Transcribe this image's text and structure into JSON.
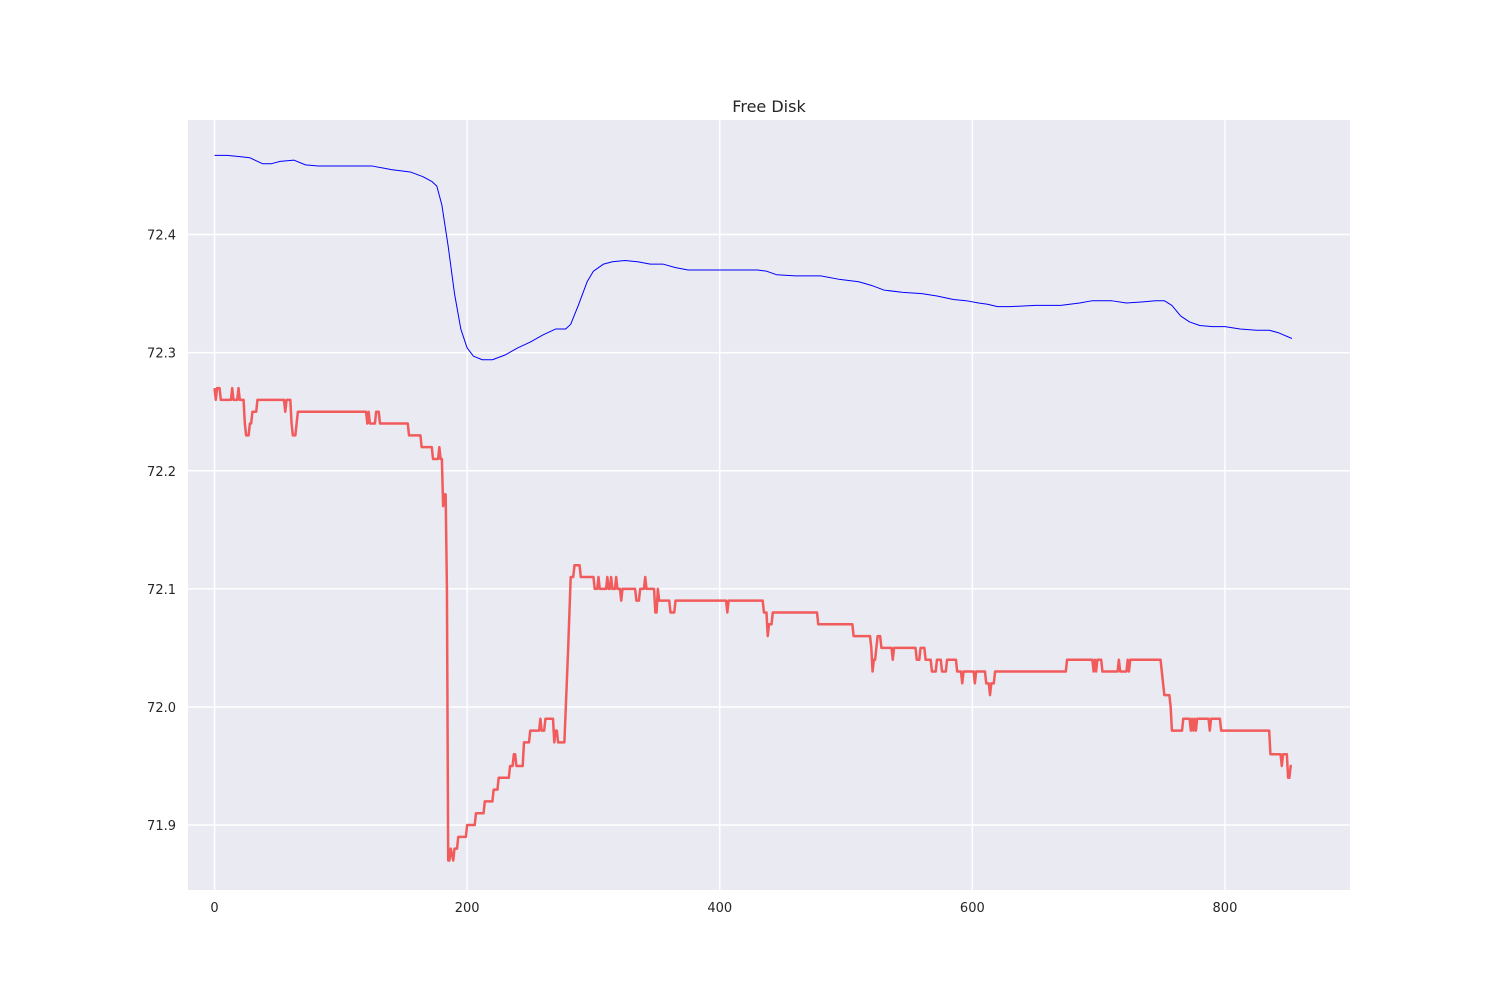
{
  "chart_data": {
    "type": "line",
    "title": "Free Disk",
    "xlabel": "",
    "ylabel": "",
    "xlim": [
      -21,
      899
    ],
    "ylim": [
      71.845,
      72.497
    ],
    "xticks": [
      0,
      200,
      400,
      600,
      800
    ],
    "xtick_labels": [
      "0",
      "200",
      "400",
      "600",
      "800"
    ],
    "yticks": [
      71.9,
      72.0,
      72.1,
      72.2,
      72.3,
      72.4
    ],
    "ytick_labels": [
      "71.9",
      "72.0",
      "72.1",
      "72.2",
      "72.3",
      "72.4"
    ],
    "grid": true,
    "background": "#eaeaf2",
    "grid_color": "#ffffff",
    "series": [
      {
        "color": "#0000ff",
        "line_width": 1,
        "points": [
          [
            0,
            72.467
          ],
          [
            10,
            72.467
          ],
          [
            20,
            72.466
          ],
          [
            28,
            72.465
          ],
          [
            32,
            72.463
          ],
          [
            38,
            72.46
          ],
          [
            45,
            72.46
          ],
          [
            52,
            72.462
          ],
          [
            63,
            72.463
          ],
          [
            72,
            72.459
          ],
          [
            82,
            72.458
          ],
          [
            100,
            72.458
          ],
          [
            125,
            72.458
          ],
          [
            140,
            72.455
          ],
          [
            155,
            72.453
          ],
          [
            165,
            72.449
          ],
          [
            172,
            72.445
          ],
          [
            176,
            72.441
          ],
          [
            180,
            72.425
          ],
          [
            185,
            72.39
          ],
          [
            190,
            72.35
          ],
          [
            195,
            72.32
          ],
          [
            200,
            72.304
          ],
          [
            205,
            72.297
          ],
          [
            212,
            72.294
          ],
          [
            220,
            72.294
          ],
          [
            230,
            72.298
          ],
          [
            240,
            72.304
          ],
          [
            250,
            72.309
          ],
          [
            260,
            72.315
          ],
          [
            270,
            72.32
          ],
          [
            278,
            72.32
          ],
          [
            282,
            72.324
          ],
          [
            288,
            72.34
          ],
          [
            295,
            72.36
          ],
          [
            300,
            72.369
          ],
          [
            308,
            72.375
          ],
          [
            315,
            72.377
          ],
          [
            325,
            72.378
          ],
          [
            335,
            72.377
          ],
          [
            345,
            72.375
          ],
          [
            355,
            72.375
          ],
          [
            365,
            72.372
          ],
          [
            375,
            72.37
          ],
          [
            390,
            72.37
          ],
          [
            410,
            72.37
          ],
          [
            430,
            72.37
          ],
          [
            437,
            72.369
          ],
          [
            445,
            72.366
          ],
          [
            460,
            72.365
          ],
          [
            480,
            72.365
          ],
          [
            495,
            72.362
          ],
          [
            510,
            72.36
          ],
          [
            520,
            72.357
          ],
          [
            530,
            72.353
          ],
          [
            545,
            72.351
          ],
          [
            560,
            72.35
          ],
          [
            572,
            72.348
          ],
          [
            585,
            72.345
          ],
          [
            595,
            72.344
          ],
          [
            605,
            72.342
          ],
          [
            612,
            72.341
          ],
          [
            620,
            72.339
          ],
          [
            630,
            72.339
          ],
          [
            650,
            72.34
          ],
          [
            670,
            72.34
          ],
          [
            685,
            72.342
          ],
          [
            695,
            72.344
          ],
          [
            710,
            72.344
          ],
          [
            722,
            72.342
          ],
          [
            735,
            72.343
          ],
          [
            745,
            72.344
          ],
          [
            752,
            72.344
          ],
          [
            758,
            72.34
          ],
          [
            765,
            72.331
          ],
          [
            772,
            72.326
          ],
          [
            780,
            72.323
          ],
          [
            790,
            72.322
          ],
          [
            800,
            72.322
          ],
          [
            812,
            72.32
          ],
          [
            825,
            72.319
          ],
          [
            835,
            72.319
          ],
          [
            842,
            72.317
          ],
          [
            853,
            72.312
          ]
        ]
      },
      {
        "color": "#f25b5b",
        "line_width": 2.5,
        "points": [
          [
            0,
            72.27
          ],
          [
            1,
            72.26
          ],
          [
            2,
            72.27
          ],
          [
            4,
            72.27
          ],
          [
            5,
            72.26
          ],
          [
            13,
            72.26
          ],
          [
            14,
            72.27
          ],
          [
            15,
            72.26
          ],
          [
            18,
            72.26
          ],
          [
            19,
            72.27
          ],
          [
            20,
            72.26
          ],
          [
            23,
            72.26
          ],
          [
            24,
            72.24
          ],
          [
            25,
            72.23
          ],
          [
            27,
            72.23
          ],
          [
            28,
            72.24
          ],
          [
            29,
            72.24
          ],
          [
            30,
            72.25
          ],
          [
            33,
            72.25
          ],
          [
            34,
            72.26
          ],
          [
            55,
            72.26
          ],
          [
            56,
            72.25
          ],
          [
            57,
            72.26
          ],
          [
            60,
            72.26
          ],
          [
            61,
            72.24
          ],
          [
            62,
            72.23
          ],
          [
            64,
            72.23
          ],
          [
            65,
            72.24
          ],
          [
            66,
            72.25
          ],
          [
            120,
            72.25
          ],
          [
            121,
            72.24
          ],
          [
            122,
            72.25
          ],
          [
            123,
            72.24
          ],
          [
            127,
            72.24
          ],
          [
            128,
            72.25
          ],
          [
            130,
            72.25
          ],
          [
            131,
            72.24
          ],
          [
            153,
            72.24
          ],
          [
            154,
            72.23
          ],
          [
            163,
            72.23
          ],
          [
            164,
            72.22
          ],
          [
            172,
            72.22
          ],
          [
            173,
            72.21
          ],
          [
            177,
            72.21
          ],
          [
            178,
            72.22
          ],
          [
            179,
            72.21
          ],
          [
            180,
            72.21
          ],
          [
            181,
            72.17
          ],
          [
            182,
            72.18
          ],
          [
            183,
            72.18
          ],
          [
            184,
            72.1
          ],
          [
            185,
            71.87
          ],
          [
            186,
            71.87
          ],
          [
            187,
            71.88
          ],
          [
            189,
            71.87
          ],
          [
            190,
            71.88
          ],
          [
            192,
            71.88
          ],
          [
            193,
            71.89
          ],
          [
            199,
            71.89
          ],
          [
            200,
            71.9
          ],
          [
            206,
            71.9
          ],
          [
            207,
            71.91
          ],
          [
            213,
            71.91
          ],
          [
            214,
            71.92
          ],
          [
            220,
            71.92
          ],
          [
            221,
            71.93
          ],
          [
            224,
            71.93
          ],
          [
            225,
            71.94
          ],
          [
            233,
            71.94
          ],
          [
            234,
            71.95
          ],
          [
            236,
            71.95
          ],
          [
            237,
            71.96
          ],
          [
            238,
            71.96
          ],
          [
            239,
            71.95
          ],
          [
            244,
            71.95
          ],
          [
            245,
            71.97
          ],
          [
            249,
            71.97
          ],
          [
            250,
            71.98
          ],
          [
            257,
            71.98
          ],
          [
            258,
            71.99
          ],
          [
            259,
            71.98
          ],
          [
            261,
            71.98
          ],
          [
            262,
            71.99
          ],
          [
            268,
            71.99
          ],
          [
            269,
            71.97
          ],
          [
            270,
            71.98
          ],
          [
            271,
            71.98
          ],
          [
            272,
            71.97
          ],
          [
            277,
            71.97
          ],
          [
            280,
            72.05
          ],
          [
            282,
            72.11
          ],
          [
            284,
            72.11
          ],
          [
            285,
            72.12
          ],
          [
            289,
            72.12
          ],
          [
            290,
            72.11
          ],
          [
            300,
            72.11
          ],
          [
            301,
            72.1
          ],
          [
            303,
            72.1
          ],
          [
            304,
            72.11
          ],
          [
            305,
            72.1
          ],
          [
            310,
            72.1
          ],
          [
            311,
            72.11
          ],
          [
            312,
            72.1
          ],
          [
            313,
            72.1
          ],
          [
            314,
            72.11
          ],
          [
            315,
            72.1
          ],
          [
            317,
            72.1
          ],
          [
            318,
            72.11
          ],
          [
            319,
            72.1
          ],
          [
            321,
            72.1
          ],
          [
            322,
            72.09
          ],
          [
            323,
            72.1
          ],
          [
            333,
            72.1
          ],
          [
            334,
            72.09
          ],
          [
            336,
            72.09
          ],
          [
            337,
            72.1
          ],
          [
            340,
            72.1
          ],
          [
            341,
            72.11
          ],
          [
            342,
            72.1
          ],
          [
            348,
            72.1
          ],
          [
            349,
            72.08
          ],
          [
            350,
            72.08
          ],
          [
            351,
            72.1
          ],
          [
            352,
            72.09
          ],
          [
            360,
            72.09
          ],
          [
            361,
            72.08
          ],
          [
            364,
            72.08
          ],
          [
            365,
            72.09
          ],
          [
            405,
            72.09
          ],
          [
            406,
            72.08
          ],
          [
            407,
            72.09
          ],
          [
            434,
            72.09
          ],
          [
            435,
            72.08
          ],
          [
            437,
            72.08
          ],
          [
            438,
            72.06
          ],
          [
            439,
            72.07
          ],
          [
            441,
            72.07
          ],
          [
            442,
            72.08
          ],
          [
            477,
            72.08
          ],
          [
            478,
            72.07
          ],
          [
            505,
            72.07
          ],
          [
            506,
            72.06
          ],
          [
            519,
            72.06
          ],
          [
            520,
            72.05
          ],
          [
            521,
            72.03
          ],
          [
            522,
            72.04
          ],
          [
            523,
            72.04
          ],
          [
            524,
            72.05
          ],
          [
            525,
            72.06
          ],
          [
            527,
            72.06
          ],
          [
            528,
            72.05
          ],
          [
            536,
            72.05
          ],
          [
            537,
            72.04
          ],
          [
            538,
            72.05
          ],
          [
            555,
            72.05
          ],
          [
            556,
            72.04
          ],
          [
            558,
            72.04
          ],
          [
            559,
            72.05
          ],
          [
            562,
            72.05
          ],
          [
            563,
            72.04
          ],
          [
            567,
            72.04
          ],
          [
            568,
            72.03
          ],
          [
            571,
            72.03
          ],
          [
            572,
            72.04
          ],
          [
            575,
            72.04
          ],
          [
            576,
            72.03
          ],
          [
            579,
            72.03
          ],
          [
            580,
            72.04
          ],
          [
            587,
            72.04
          ],
          [
            588,
            72.03
          ],
          [
            591,
            72.03
          ],
          [
            592,
            72.02
          ],
          [
            593,
            72.03
          ],
          [
            601,
            72.03
          ],
          [
            602,
            72.02
          ],
          [
            603,
            72.03
          ],
          [
            610,
            72.03
          ],
          [
            611,
            72.02
          ],
          [
            613,
            72.02
          ],
          [
            614,
            72.01
          ],
          [
            615,
            72.02
          ],
          [
            617,
            72.02
          ],
          [
            618,
            72.03
          ],
          [
            674,
            72.03
          ],
          [
            675,
            72.04
          ],
          [
            695,
            72.04
          ],
          [
            696,
            72.03
          ],
          [
            697,
            72.04
          ],
          [
            698,
            72.03
          ],
          [
            699,
            72.04
          ],
          [
            702,
            72.04
          ],
          [
            703,
            72.03
          ],
          [
            715,
            72.03
          ],
          [
            716,
            72.04
          ],
          [
            717,
            72.03
          ],
          [
            722,
            72.03
          ],
          [
            723,
            72.04
          ],
          [
            724,
            72.03
          ],
          [
            725,
            72.04
          ],
          [
            749,
            72.04
          ],
          [
            750,
            72.03
          ],
          [
            752,
            72.01
          ],
          [
            756,
            72.01
          ],
          [
            757,
            72.0
          ],
          [
            758,
            71.98
          ],
          [
            766,
            71.98
          ],
          [
            767,
            71.99
          ],
          [
            772,
            71.99
          ],
          [
            773,
            71.98
          ],
          [
            774,
            71.99
          ],
          [
            775,
            71.98
          ],
          [
            776,
            71.99
          ],
          [
            777,
            71.98
          ],
          [
            778,
            71.99
          ],
          [
            787,
            71.99
          ],
          [
            788,
            71.98
          ],
          [
            789,
            71.99
          ],
          [
            796,
            71.99
          ],
          [
            797,
            71.98
          ],
          [
            835,
            71.98
          ],
          [
            836,
            71.96
          ],
          [
            844,
            71.96
          ],
          [
            845,
            71.95
          ],
          [
            846,
            71.96
          ],
          [
            849,
            71.96
          ],
          [
            850,
            71.94
          ],
          [
            851,
            71.94
          ],
          [
            852,
            71.95
          ],
          [
            853,
            71.95
          ]
        ]
      }
    ]
  }
}
